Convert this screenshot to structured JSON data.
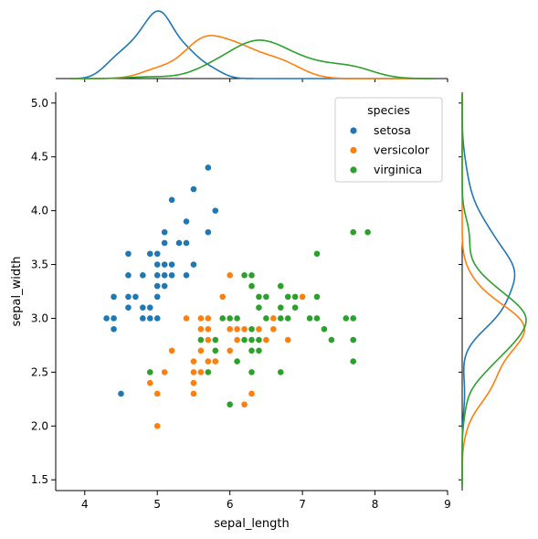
{
  "chart_data": {
    "type": "scatter",
    "xlabel": "sepal_length",
    "ylabel": "sepal_width",
    "xlim": [
      3.6,
      9.0
    ],
    "ylim": [
      1.4,
      5.1
    ],
    "xticks": [
      "4",
      "5",
      "6",
      "7",
      "8",
      "9"
    ],
    "yticks": [
      "1.5",
      "2.0",
      "2.5",
      "3.0",
      "3.5",
      "4.0",
      "4.5",
      "5.0"
    ],
    "grid": false,
    "legend": {
      "title": "species",
      "placement": "top-right"
    },
    "marginals": {
      "top": "kde of sepal_length per species",
      "right": "kde of sepal_width per species"
    },
    "series": [
      {
        "name": "setosa",
        "color": "#1f77b4",
        "points": [
          [
            5.1,
            3.5
          ],
          [
            4.9,
            3.0
          ],
          [
            4.7,
            3.2
          ],
          [
            4.6,
            3.1
          ],
          [
            5.0,
            3.6
          ],
          [
            5.4,
            3.9
          ],
          [
            4.6,
            3.4
          ],
          [
            5.0,
            3.4
          ],
          [
            4.4,
            2.9
          ],
          [
            4.9,
            3.1
          ],
          [
            5.4,
            3.7
          ],
          [
            4.8,
            3.4
          ],
          [
            4.8,
            3.0
          ],
          [
            4.3,
            3.0
          ],
          [
            5.8,
            4.0
          ],
          [
            5.7,
            4.4
          ],
          [
            5.4,
            3.9
          ],
          [
            5.1,
            3.5
          ],
          [
            5.7,
            3.8
          ],
          [
            5.1,
            3.8
          ],
          [
            5.4,
            3.4
          ],
          [
            5.1,
            3.7
          ],
          [
            4.6,
            3.6
          ],
          [
            5.1,
            3.3
          ],
          [
            4.8,
            3.4
          ],
          [
            5.0,
            3.0
          ],
          [
            5.0,
            3.4
          ],
          [
            5.2,
            3.5
          ],
          [
            5.2,
            3.4
          ],
          [
            4.7,
            3.2
          ],
          [
            4.8,
            3.1
          ],
          [
            5.4,
            3.4
          ],
          [
            5.2,
            4.1
          ],
          [
            5.5,
            4.2
          ],
          [
            4.9,
            3.1
          ],
          [
            5.0,
            3.2
          ],
          [
            5.5,
            3.5
          ],
          [
            4.9,
            3.6
          ],
          [
            4.4,
            3.0
          ],
          [
            5.1,
            3.4
          ],
          [
            5.0,
            3.5
          ],
          [
            4.5,
            2.3
          ],
          [
            4.4,
            3.2
          ],
          [
            5.0,
            3.5
          ],
          [
            5.1,
            3.8
          ],
          [
            4.8,
            3.0
          ],
          [
            5.1,
            3.8
          ],
          [
            4.6,
            3.2
          ],
          [
            5.3,
            3.7
          ],
          [
            5.0,
            3.3
          ]
        ]
      },
      {
        "name": "versicolor",
        "color": "#ff7f0e",
        "points": [
          [
            7.0,
            3.2
          ],
          [
            6.4,
            3.2
          ],
          [
            6.9,
            3.1
          ],
          [
            5.5,
            2.3
          ],
          [
            6.5,
            2.8
          ],
          [
            5.7,
            2.8
          ],
          [
            6.3,
            3.3
          ],
          [
            4.9,
            2.4
          ],
          [
            6.6,
            2.9
          ],
          [
            5.2,
            2.7
          ],
          [
            5.0,
            2.0
          ],
          [
            5.9,
            3.0
          ],
          [
            6.0,
            2.2
          ],
          [
            6.1,
            2.9
          ],
          [
            5.6,
            2.9
          ],
          [
            6.7,
            3.1
          ],
          [
            5.6,
            3.0
          ],
          [
            5.8,
            2.7
          ],
          [
            6.2,
            2.2
          ],
          [
            5.6,
            2.5
          ],
          [
            5.9,
            3.2
          ],
          [
            6.1,
            2.8
          ],
          [
            6.3,
            2.5
          ],
          [
            6.1,
            2.8
          ],
          [
            6.4,
            2.9
          ],
          [
            6.6,
            3.0
          ],
          [
            6.8,
            2.8
          ],
          [
            6.7,
            3.0
          ],
          [
            6.0,
            2.9
          ],
          [
            5.7,
            2.6
          ],
          [
            5.5,
            2.4
          ],
          [
            5.5,
            2.4
          ],
          [
            5.8,
            2.7
          ],
          [
            6.0,
            2.7
          ],
          [
            5.4,
            3.0
          ],
          [
            6.0,
            3.4
          ],
          [
            6.7,
            3.1
          ],
          [
            6.3,
            2.3
          ],
          [
            5.6,
            3.0
          ],
          [
            5.5,
            2.5
          ],
          [
            5.5,
            2.6
          ],
          [
            6.1,
            3.0
          ],
          [
            5.8,
            2.6
          ],
          [
            5.0,
            2.3
          ],
          [
            5.6,
            2.7
          ],
          [
            5.7,
            3.0
          ],
          [
            5.7,
            2.9
          ],
          [
            6.2,
            2.9
          ],
          [
            5.1,
            2.5
          ],
          [
            5.7,
            2.8
          ]
        ]
      },
      {
        "name": "virginica",
        "color": "#2ca02c",
        "points": [
          [
            6.3,
            3.3
          ],
          [
            5.8,
            2.7
          ],
          [
            7.1,
            3.0
          ],
          [
            6.3,
            2.9
          ],
          [
            6.5,
            3.0
          ],
          [
            7.6,
            3.0
          ],
          [
            4.9,
            2.5
          ],
          [
            7.3,
            2.9
          ],
          [
            6.7,
            2.5
          ],
          [
            7.2,
            3.6
          ],
          [
            6.5,
            3.2
          ],
          [
            6.4,
            2.7
          ],
          [
            6.8,
            3.0
          ],
          [
            5.7,
            2.5
          ],
          [
            5.8,
            2.8
          ],
          [
            6.4,
            3.2
          ],
          [
            6.5,
            3.0
          ],
          [
            7.7,
            3.8
          ],
          [
            7.7,
            2.6
          ],
          [
            6.0,
            2.2
          ],
          [
            6.9,
            3.2
          ],
          [
            5.6,
            2.8
          ],
          [
            7.7,
            2.8
          ],
          [
            6.3,
            2.7
          ],
          [
            6.7,
            3.3
          ],
          [
            7.2,
            3.2
          ],
          [
            6.2,
            2.8
          ],
          [
            6.1,
            3.0
          ],
          [
            6.4,
            2.8
          ],
          [
            7.2,
            3.0
          ],
          [
            7.4,
            2.8
          ],
          [
            7.9,
            3.8
          ],
          [
            6.4,
            2.8
          ],
          [
            6.3,
            2.8
          ],
          [
            6.1,
            2.6
          ],
          [
            7.7,
            3.0
          ],
          [
            6.3,
            3.4
          ],
          [
            6.4,
            3.1
          ],
          [
            6.0,
            3.0
          ],
          [
            6.9,
            3.1
          ],
          [
            6.7,
            3.1
          ],
          [
            6.9,
            3.1
          ],
          [
            5.8,
            2.7
          ],
          [
            6.8,
            3.2
          ],
          [
            6.7,
            3.3
          ],
          [
            6.7,
            3.0
          ],
          [
            6.3,
            2.5
          ],
          [
            6.5,
            3.0
          ],
          [
            6.2,
            3.4
          ],
          [
            5.9,
            3.0
          ]
        ]
      }
    ]
  }
}
